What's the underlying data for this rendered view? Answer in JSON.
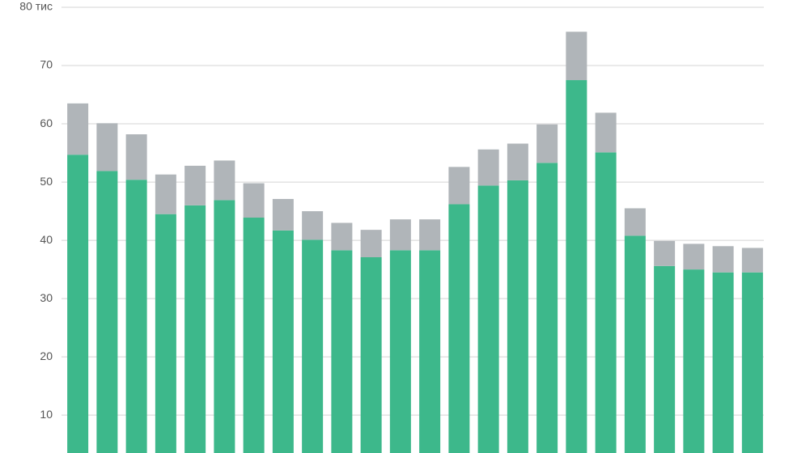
{
  "chart_data": {
    "type": "stacked_bar",
    "categories": [
      null,
      null,
      null,
      null,
      null,
      null,
      null,
      null,
      null,
      null,
      null,
      null,
      null,
      null,
      null,
      null,
      null,
      null,
      null,
      null,
      null,
      null,
      null,
      null
    ],
    "series": [
      {
        "color": "#3db88b",
        "values": [
          51.2,
          48.4,
          46.9,
          41.0,
          42.5,
          43.4,
          40.4,
          38.2,
          36.6,
          34.8,
          33.6,
          34.8,
          34.8,
          42.7,
          45.9,
          46.8,
          49.8,
          64.0,
          51.6,
          37.3,
          32.1,
          31.5,
          31.0,
          31.0
        ]
      },
      {
        "color": "#b0b5b9",
        "values": [
          8.8,
          8.2,
          7.8,
          6.8,
          6.8,
          6.8,
          5.9,
          5.4,
          4.9,
          4.7,
          4.7,
          5.3,
          5.3,
          6.4,
          6.2,
          6.3,
          6.6,
          8.3,
          6.8,
          4.7,
          4.3,
          4.4,
          4.5,
          4.2
        ]
      }
    ],
    "ylim": [
      3.5,
      80
    ],
    "yticks": [
      10,
      20,
      30,
      40,
      50,
      60,
      70,
      {
        "value": 80,
        "label": "80 тис"
      }
    ],
    "grid": true
  }
}
